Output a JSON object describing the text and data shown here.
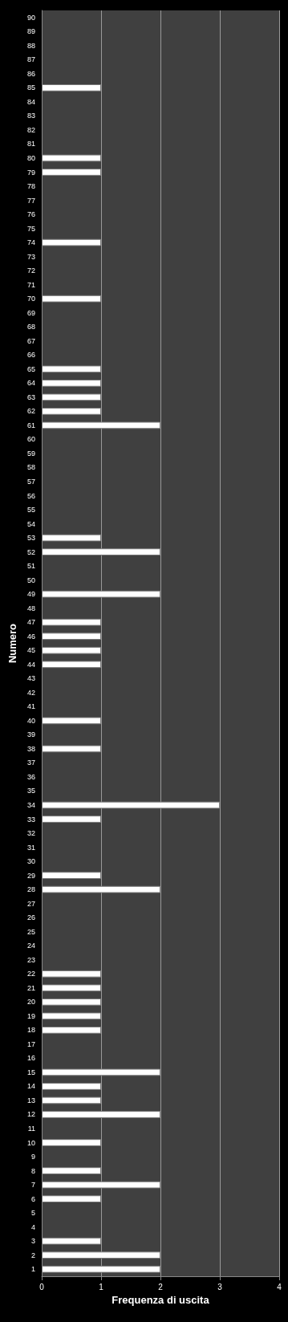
{
  "chart_data": {
    "type": "bar",
    "orientation": "horizontal",
    "xlabel": "Frequenza di uscita",
    "ylabel": "Numero",
    "categories": [
      "90",
      "89",
      "88",
      "87",
      "86",
      "85",
      "84",
      "83",
      "82",
      "81",
      "80",
      "79",
      "78",
      "77",
      "76",
      "75",
      "74",
      "73",
      "72",
      "71",
      "70",
      "69",
      "68",
      "67",
      "66",
      "65",
      "64",
      "63",
      "62",
      "61",
      "60",
      "59",
      "58",
      "57",
      "56",
      "55",
      "54",
      "53",
      "52",
      "51",
      "50",
      "49",
      "48",
      "47",
      "46",
      "45",
      "44",
      "43",
      "42",
      "41",
      "40",
      "39",
      "38",
      "37",
      "36",
      "35",
      "34",
      "33",
      "32",
      "31",
      "30",
      "29",
      "28",
      "27",
      "26",
      "25",
      "24",
      "23",
      "22",
      "21",
      "20",
      "19",
      "18",
      "17",
      "16",
      "15",
      "14",
      "13",
      "12",
      "11",
      "10",
      "9",
      "8",
      "7",
      "6",
      "5",
      "4",
      "3",
      "2",
      "1"
    ],
    "values": [
      0,
      0,
      0,
      0,
      0,
      1,
      0,
      0,
      0,
      0,
      1,
      1,
      0,
      0,
      0,
      0,
      1,
      0,
      0,
      0,
      1,
      0,
      0,
      0,
      0,
      1,
      1,
      1,
      1,
      2,
      0,
      0,
      0,
      0,
      0,
      0,
      0,
      1,
      2,
      0,
      0,
      2,
      0,
      1,
      1,
      1,
      1,
      0,
      0,
      0,
      1,
      0,
      1,
      0,
      0,
      0,
      3,
      1,
      0,
      0,
      0,
      1,
      2,
      0,
      0,
      0,
      0,
      0,
      1,
      1,
      1,
      1,
      1,
      0,
      0,
      2,
      1,
      1,
      2,
      0,
      1,
      0,
      1,
      2,
      1,
      0,
      0,
      1,
      2,
      2
    ],
    "color": "#ffffff",
    "xlim": [
      0,
      4
    ],
    "xticks": [
      0,
      1,
      2,
      3,
      4
    ],
    "grid": "x"
  }
}
